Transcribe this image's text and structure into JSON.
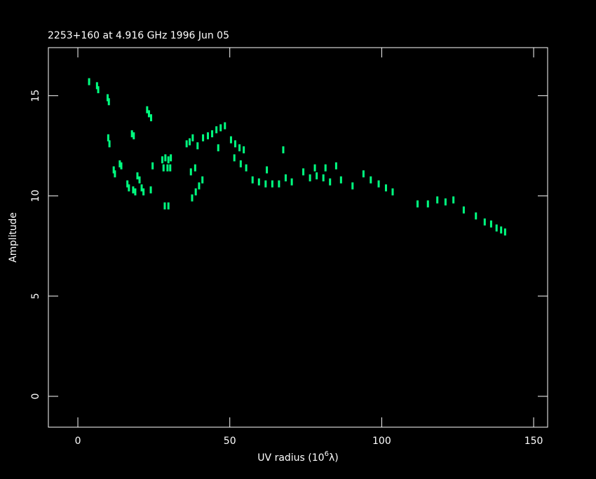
{
  "chart_data": {
    "type": "scatter",
    "title": "2253+160 at 4.916 GHz 1996 Jun 05",
    "x_label": "UV radius  (10",
    "x_label_exp": "6",
    "x_label_unit": "λ)",
    "y_label": "Amplitude",
    "color": "#00ff80",
    "xlim": [
      -9.7,
      154.6
    ],
    "ylim": [
      -1.54,
      17.4
    ],
    "xticks": [
      0,
      50,
      100,
      150
    ],
    "yticks": [
      0,
      5,
      10,
      15
    ],
    "x": [
      3.7,
      6.3,
      6.7,
      9.8,
      10.2,
      10.0,
      10.4,
      11.8,
      12.2,
      13.8,
      14.3,
      16.3,
      16.8,
      17.8,
      18.4,
      18.2,
      18.9,
      19.6,
      20.3,
      21.0,
      21.6,
      22.8,
      23.4,
      24.1,
      24.0,
      24.6,
      27.8,
      28.8,
      29.8,
      30.6,
      28.2,
      29.5,
      30.4,
      28.6,
      29.8,
      35.8,
      36.8,
      37.8,
      37.2,
      38.6,
      37.6,
      38.8,
      39.9,
      41.0,
      39.4,
      41.2,
      42.8,
      44.2,
      45.6,
      47.0,
      48.4,
      46.2,
      50.4,
      51.8,
      53.2,
      54.6,
      51.5,
      53.6,
      55.4,
      57.5,
      59.6,
      61.8,
      62.2,
      64.0,
      66.2,
      67.6,
      68.4,
      70.4,
      74.2,
      76.4,
      78.6,
      80.8,
      83.0,
      78.0,
      81.5,
      85.0,
      86.6,
      90.4,
      94.0,
      96.4,
      99.0,
      101.4,
      103.6,
      111.8,
      115.2,
      118.3,
      121.0,
      123.6,
      127.0,
      131.0,
      133.9,
      136.0,
      137.8,
      139.3,
      140.6
    ],
    "y": [
      15.7,
      15.5,
      15.3,
      14.9,
      14.7,
      12.9,
      12.6,
      11.3,
      11.1,
      11.6,
      11.5,
      10.6,
      10.4,
      13.1,
      13.0,
      10.3,
      10.2,
      11.0,
      10.8,
      10.4,
      10.2,
      14.3,
      14.1,
      13.9,
      10.3,
      11.5,
      11.8,
      11.9,
      11.8,
      11.9,
      11.4,
      11.4,
      11.4,
      9.5,
      9.5,
      12.6,
      12.7,
      12.9,
      11.2,
      11.4,
      9.9,
      10.2,
      10.5,
      10.8,
      12.5,
      12.9,
      13.0,
      13.1,
      13.3,
      13.4,
      13.5,
      12.4,
      12.8,
      12.6,
      12.4,
      12.3,
      11.9,
      11.6,
      11.4,
      10.8,
      10.7,
      10.6,
      11.3,
      10.6,
      10.6,
      12.3,
      10.9,
      10.7,
      11.2,
      10.9,
      11.0,
      10.9,
      10.7,
      11.4,
      11.4,
      11.5,
      10.8,
      10.5,
      11.1,
      10.8,
      10.6,
      10.4,
      10.2,
      9.6,
      9.6,
      9.8,
      9.7,
      9.8,
      9.3,
      9.0,
      8.7,
      8.6,
      8.4,
      8.3,
      8.2
    ]
  }
}
